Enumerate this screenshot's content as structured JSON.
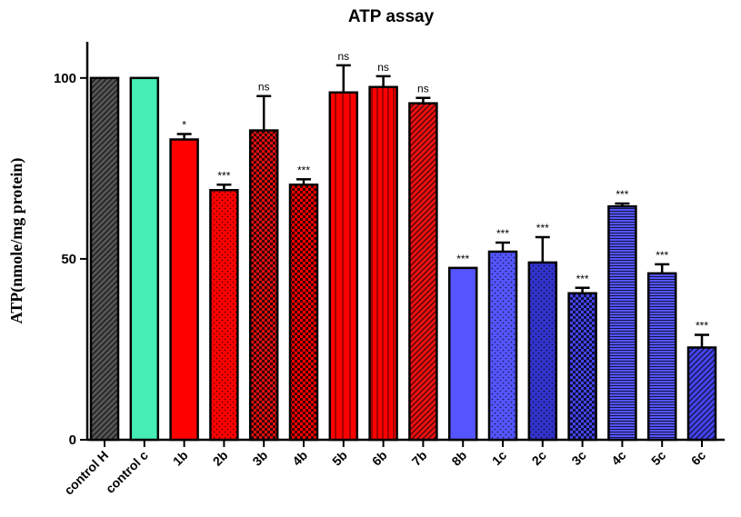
{
  "chart_data": {
    "type": "bar",
    "title": "ATP assay",
    "ylabel": "ATP(nmole/mg protein)",
    "xlabel": "",
    "ylim": [
      0,
      110
    ],
    "yticks": [
      0,
      50,
      100
    ],
    "grid": false,
    "categories": [
      "control H",
      "control c",
      "1b",
      "2b",
      "3b",
      "4b",
      "5b",
      "6b",
      "7b",
      "8b",
      "1c",
      "2c",
      "3c",
      "4c",
      "5c",
      "6c"
    ],
    "values": [
      100,
      100,
      83,
      69,
      85.5,
      70.5,
      96,
      97.5,
      93,
      47.5,
      52,
      49,
      40.5,
      64.5,
      46,
      25.5
    ],
    "errors": [
      0,
      0,
      1.5,
      1.5,
      9.5,
      1.5,
      7.5,
      3,
      1.5,
      0,
      2.5,
      7,
      1.5,
      0.8,
      2.5,
      3.5
    ],
    "significance": [
      "",
      "",
      "*",
      "***",
      "ns",
      "***",
      "ns",
      "ns",
      "ns",
      "***",
      "***",
      "***",
      "***",
      "***",
      "***",
      "***"
    ],
    "colors": [
      "#555555",
      "#44eeb4",
      "#ff0000",
      "#ff0000",
      "#e01010",
      "#ff0000",
      "#ff0000",
      "#ff0000",
      "#ee1111",
      "#5555ff",
      "#5555ff",
      "#3333cc",
      "#4444ee",
      "#5555ff",
      "#5555ff",
      "#4444ee"
    ],
    "patterns": [
      "diag",
      "none",
      "none",
      "dots",
      "checker",
      "checker",
      "vlines-sparse",
      "vlines",
      "diag",
      "none",
      "dots",
      "dots",
      "checker",
      "hlines",
      "hlines",
      "diag"
    ]
  }
}
